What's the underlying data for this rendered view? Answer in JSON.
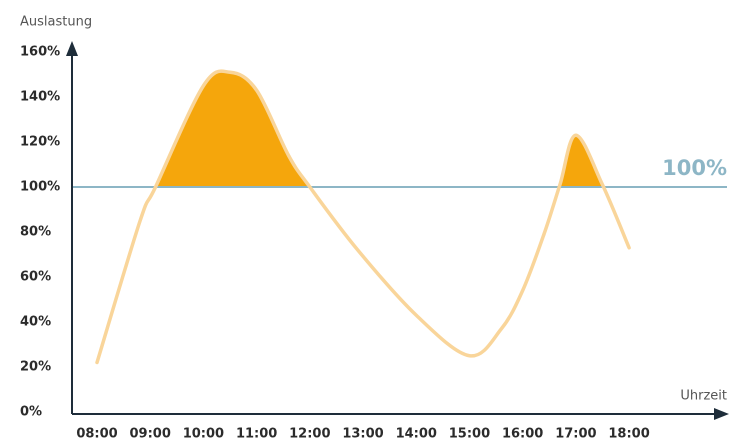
{
  "chart_data": {
    "type": "line",
    "y_label": "Auslastung",
    "x_label": "Uhrzeit",
    "x": [
      8.0,
      8.81,
      9.1,
      10.0,
      10.5,
      11.0,
      11.6,
      12.0,
      12.9,
      14.0,
      15.0,
      15.6,
      16.0,
      16.4,
      16.7,
      17.0,
      17.5,
      18.0
    ],
    "series": [
      {
        "color": "#f9d59a",
        "fill_color": "#f5a60c",
        "values": [
          22,
          85,
          100,
          145,
          151,
          143,
          114,
          100,
          72,
          43,
          25,
          37,
          54,
          79,
          101,
          123,
          101,
          73
        ]
      }
    ],
    "threshold": {
      "value": 100,
      "label": "100%"
    },
    "threshold_color": "#8db6c6",
    "xlim": [
      7.53,
      19.84
    ],
    "ylim": [
      0,
      160
    ],
    "xticks": [
      {
        "value": 8,
        "label": "08:00"
      },
      {
        "value": 9,
        "label": "09:00"
      },
      {
        "value": 10,
        "label": "10:00"
      },
      {
        "value": 11,
        "label": "11:00"
      },
      {
        "value": 12,
        "label": "12:00"
      },
      {
        "value": 13,
        "label": "13:00"
      },
      {
        "value": 14,
        "label": "14:00"
      },
      {
        "value": 15,
        "label": "15:00"
      },
      {
        "value": 16,
        "label": "16:00"
      },
      {
        "value": 17,
        "label": "17:00"
      },
      {
        "value": 18,
        "label": "18:00"
      }
    ],
    "yticks": [
      {
        "value": 0,
        "label": "0%"
      },
      {
        "value": 20,
        "label": "20%"
      },
      {
        "value": 40,
        "label": "40%"
      },
      {
        "value": 60,
        "label": "60%"
      },
      {
        "value": 80,
        "label": "80%"
      },
      {
        "value": 100,
        "label": "100%"
      },
      {
        "value": 120,
        "label": "120%"
      },
      {
        "value": 140,
        "label": "140%"
      },
      {
        "value": 160,
        "label": "160%"
      }
    ],
    "grid": false
  }
}
